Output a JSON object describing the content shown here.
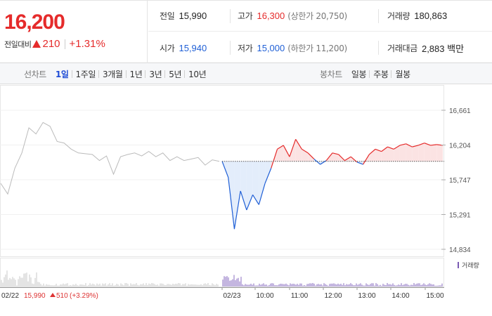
{
  "quote": {
    "price": "16,200",
    "change_label": "전일대비",
    "change_value": "210",
    "change_pct": "+1.31%",
    "prev_close_label": "전일",
    "prev_close": "15,990",
    "high_label": "고가",
    "high": "16,300",
    "upper_limit": "(상한가 20,750)",
    "volume_label": "거래량",
    "volume": "180,863",
    "open_label": "시가",
    "open": "15,940",
    "low_label": "저가",
    "low": "15,000",
    "lower_limit": "(하한가 11,200)",
    "amount_label": "거래대금",
    "amount": "2,883 백만"
  },
  "tabs": {
    "line_title": "선차트",
    "line": [
      "1일",
      "1주일",
      "3개월",
      "1년",
      "3년",
      "5년",
      "10년"
    ],
    "line_active": 0,
    "candle_title": "봉차트",
    "candle": [
      "일봉",
      "주봉",
      "월봉"
    ]
  },
  "colors": {
    "up": "#e52b2b",
    "down": "#1f5fd6",
    "prev": "#bbbbbb",
    "accent_tab": "#1f4cd6"
  },
  "chart_data": {
    "type": "line",
    "y_ticks": [
      "16,661",
      "16,204",
      "15,747",
      "15,291",
      "14,834"
    ],
    "y_tick_values": [
      16661,
      16204,
      15747,
      15291,
      14834
    ],
    "ylim": [
      14834,
      16661
    ],
    "x_ticks": [
      "02/23",
      "10:00",
      "11:00",
      "12:00",
      "13:00",
      "14:00",
      "15:00"
    ],
    "prev_day_label": "02/22",
    "prev_day_close": "15,990",
    "prev_day_change": "510",
    "prev_day_change_pct": "(+3.29%)",
    "baseline": 15990,
    "volume_legend": "거래량",
    "prev_session": [
      {
        "t": 0,
        "v": 15700
      },
      {
        "t": 1,
        "v": 15560
      },
      {
        "t": 2,
        "v": 15900
      },
      {
        "t": 3,
        "v": 16100
      },
      {
        "t": 4,
        "v": 16430
      },
      {
        "t": 5,
        "v": 16350
      },
      {
        "t": 6,
        "v": 16500
      },
      {
        "t": 7,
        "v": 16450
      },
      {
        "t": 8,
        "v": 16250
      },
      {
        "t": 9,
        "v": 16230
      },
      {
        "t": 10,
        "v": 16150
      },
      {
        "t": 11,
        "v": 16100
      },
      {
        "t": 12,
        "v": 16090
      },
      {
        "t": 13,
        "v": 16080
      },
      {
        "t": 14,
        "v": 16000
      },
      {
        "t": 15,
        "v": 16060
      },
      {
        "t": 16,
        "v": 15820
      },
      {
        "t": 17,
        "v": 16050
      },
      {
        "t": 18,
        "v": 16080
      },
      {
        "t": 19,
        "v": 16100
      },
      {
        "t": 20,
        "v": 16060
      },
      {
        "t": 21,
        "v": 16120
      },
      {
        "t": 22,
        "v": 16050
      },
      {
        "t": 23,
        "v": 16100
      },
      {
        "t": 24,
        "v": 16000
      },
      {
        "t": 25,
        "v": 16050
      },
      {
        "t": 26,
        "v": 16000
      },
      {
        "t": 27,
        "v": 16020
      },
      {
        "t": 28,
        "v": 16040
      },
      {
        "t": 29,
        "v": 15940
      },
      {
        "t": 30,
        "v": 16010
      },
      {
        "t": 31,
        "v": 15990
      }
    ],
    "today_session": [
      {
        "t": 0,
        "v": 15990
      },
      {
        "t": 1,
        "v": 15780
      },
      {
        "t": 2,
        "v": 15100
      },
      {
        "t": 3,
        "v": 15600
      },
      {
        "t": 4,
        "v": 15350
      },
      {
        "t": 5,
        "v": 15550
      },
      {
        "t": 6,
        "v": 15420
      },
      {
        "t": 7,
        "v": 15700
      },
      {
        "t": 8,
        "v": 15900
      },
      {
        "t": 9,
        "v": 16150
      },
      {
        "t": 10,
        "v": 16200
      },
      {
        "t": 11,
        "v": 16050
      },
      {
        "t": 12,
        "v": 16280
      },
      {
        "t": 13,
        "v": 16150
      },
      {
        "t": 14,
        "v": 16100
      },
      {
        "t": 15,
        "v": 16020
      },
      {
        "t": 16,
        "v": 15950
      },
      {
        "t": 17,
        "v": 16000
      },
      {
        "t": 18,
        "v": 16100
      },
      {
        "t": 19,
        "v": 16080
      },
      {
        "t": 20,
        "v": 16000
      },
      {
        "t": 21,
        "v": 16050
      },
      {
        "t": 22,
        "v": 15980
      },
      {
        "t": 23,
        "v": 15950
      },
      {
        "t": 24,
        "v": 16080
      },
      {
        "t": 25,
        "v": 16150
      },
      {
        "t": 26,
        "v": 16120
      },
      {
        "t": 27,
        "v": 16180
      },
      {
        "t": 28,
        "v": 16150
      },
      {
        "t": 29,
        "v": 16200
      },
      {
        "t": 30,
        "v": 16220
      },
      {
        "t": 31,
        "v": 16180
      },
      {
        "t": 32,
        "v": 16200
      },
      {
        "t": 33,
        "v": 16230
      },
      {
        "t": 34,
        "v": 16200
      },
      {
        "t": 35,
        "v": 16210
      },
      {
        "t": 36,
        "v": 16200
      }
    ]
  }
}
